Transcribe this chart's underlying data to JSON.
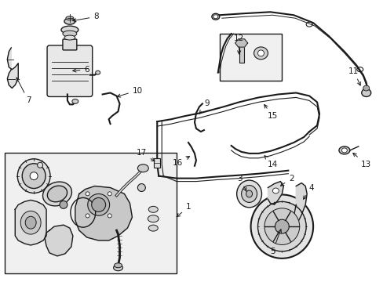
{
  "bg_color": "#ffffff",
  "line_color": "#1a1a1a",
  "fig_width": 4.89,
  "fig_height": 3.6,
  "dpi": 100,
  "label_fontsize": 7.5,
  "annotation_fontsize": 7.5
}
